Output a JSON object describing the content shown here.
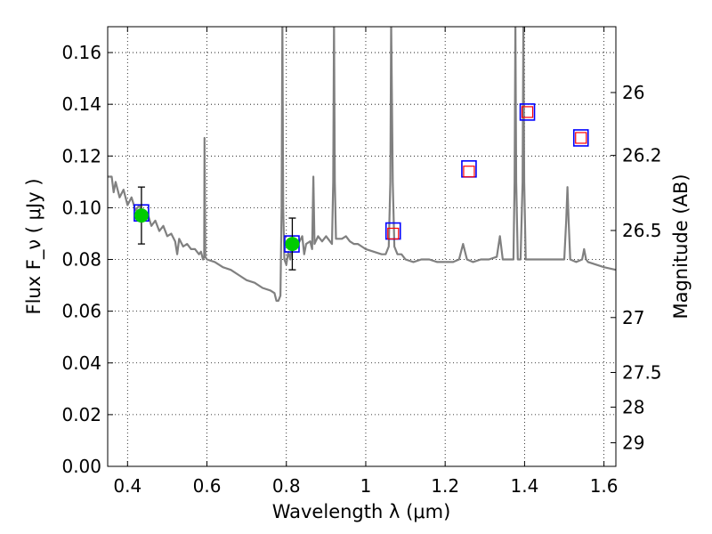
{
  "chart_data": {
    "type": "scatter",
    "title": "",
    "xlabel": "Wavelength  λ (μm)",
    "ylabel": "Flux  F_ν  ( μJy )",
    "ylabel_right": "Magnitude (AB)",
    "xlim": [
      0.35,
      1.63
    ],
    "ylim": [
      0.0,
      0.17
    ],
    "grid": true,
    "grid_style": "dotted",
    "xticks": [
      0.4,
      0.6,
      0.8,
      1.0,
      1.2,
      1.4,
      1.6
    ],
    "xtick_labels": [
      "0.4",
      "0.6",
      "0.8",
      "1",
      "1.2",
      "1.4",
      "1.6"
    ],
    "yticks": [
      0.0,
      0.02,
      0.04,
      0.06,
      0.08,
      0.1,
      0.12,
      0.14,
      0.16
    ],
    "ytick_labels": [
      "0.00",
      "0.02",
      "0.04",
      "0.06",
      "0.08",
      "0.10",
      "0.12",
      "0.14",
      "0.16"
    ],
    "right_ticks": [
      {
        "mag": 26.0,
        "label": "26"
      },
      {
        "mag": 26.2,
        "label": "26.2"
      },
      {
        "mag": 26.5,
        "label": "26.5"
      },
      {
        "mag": 27.0,
        "label": "27"
      },
      {
        "mag": 27.5,
        "label": "27.5"
      },
      {
        "mag": 28.0,
        "label": "28"
      },
      {
        "mag": 29.0,
        "label": "29"
      }
    ],
    "observed_points": [
      {
        "x": 0.435,
        "y": 0.097,
        "yerr": 0.011
      },
      {
        "x": 0.815,
        "y": 0.086,
        "yerr": 0.01
      }
    ],
    "model_photometry": [
      {
        "x": 0.435,
        "y": 0.098
      },
      {
        "x": 0.814,
        "y": 0.086
      },
      {
        "x": 1.069,
        "y": 0.091
      },
      {
        "x": 1.26,
        "y": 0.115
      },
      {
        "x": 1.407,
        "y": 0.137
      },
      {
        "x": 1.542,
        "y": 0.127
      }
    ],
    "upper_limits": [
      {
        "x": 1.069,
        "y": 0.09
      },
      {
        "x": 1.26,
        "y": 0.114
      },
      {
        "x": 1.407,
        "y": 0.137
      },
      {
        "x": 1.542,
        "y": 0.127
      }
    ],
    "spectrum": [
      [
        0.35,
        0.112
      ],
      [
        0.36,
        0.112
      ],
      [
        0.365,
        0.106
      ],
      [
        0.37,
        0.11
      ],
      [
        0.38,
        0.104
      ],
      [
        0.39,
        0.107
      ],
      [
        0.4,
        0.101
      ],
      [
        0.41,
        0.104
      ],
      [
        0.42,
        0.099
      ],
      [
        0.43,
        0.101
      ],
      [
        0.44,
        0.096
      ],
      [
        0.45,
        0.098
      ],
      [
        0.46,
        0.093
      ],
      [
        0.47,
        0.095
      ],
      [
        0.48,
        0.091
      ],
      [
        0.49,
        0.093
      ],
      [
        0.5,
        0.089
      ],
      [
        0.51,
        0.09
      ],
      [
        0.52,
        0.087
      ],
      [
        0.525,
        0.082
      ],
      [
        0.53,
        0.088
      ],
      [
        0.54,
        0.085
      ],
      [
        0.55,
        0.086
      ],
      [
        0.56,
        0.084
      ],
      [
        0.57,
        0.084
      ],
      [
        0.58,
        0.082
      ],
      [
        0.585,
        0.083
      ],
      [
        0.59,
        0.08
      ],
      [
        0.593,
        0.081
      ],
      [
        0.594,
        0.127
      ],
      [
        0.596,
        0.081
      ],
      [
        0.6,
        0.08
      ],
      [
        0.62,
        0.079
      ],
      [
        0.64,
        0.077
      ],
      [
        0.66,
        0.076
      ],
      [
        0.68,
        0.074
      ],
      [
        0.7,
        0.072
      ],
      [
        0.72,
        0.071
      ],
      [
        0.74,
        0.069
      ],
      [
        0.76,
        0.068
      ],
      [
        0.77,
        0.067
      ],
      [
        0.775,
        0.064
      ],
      [
        0.78,
        0.064
      ],
      [
        0.785,
        0.066
      ],
      [
        0.788,
        0.1
      ],
      [
        0.79,
        0.172
      ],
      [
        0.792,
        0.1
      ],
      [
        0.795,
        0.08
      ],
      [
        0.8,
        0.078
      ],
      [
        0.805,
        0.083
      ],
      [
        0.81,
        0.08
      ],
      [
        0.815,
        0.086
      ],
      [
        0.82,
        0.084
      ],
      [
        0.83,
        0.086
      ],
      [
        0.84,
        0.089
      ],
      [
        0.845,
        0.082
      ],
      [
        0.85,
        0.086
      ],
      [
        0.86,
        0.087
      ],
      [
        0.865,
        0.084
      ],
      [
        0.868,
        0.112
      ],
      [
        0.871,
        0.086
      ],
      [
        0.88,
        0.089
      ],
      [
        0.89,
        0.087
      ],
      [
        0.9,
        0.089
      ],
      [
        0.91,
        0.087
      ],
      [
        0.915,
        0.086
      ],
      [
        0.918,
        0.11
      ],
      [
        0.92,
        0.172
      ],
      [
        0.922,
        0.11
      ],
      [
        0.925,
        0.088
      ],
      [
        0.93,
        0.088
      ],
      [
        0.94,
        0.088
      ],
      [
        0.95,
        0.089
      ],
      [
        0.96,
        0.087
      ],
      [
        0.97,
        0.086
      ],
      [
        0.98,
        0.086
      ],
      [
        0.99,
        0.085
      ],
      [
        1.0,
        0.084
      ],
      [
        1.02,
        0.083
      ],
      [
        1.04,
        0.082
      ],
      [
        1.05,
        0.082
      ],
      [
        1.058,
        0.085
      ],
      [
        1.062,
        0.11
      ],
      [
        1.064,
        0.172
      ],
      [
        1.068,
        0.11
      ],
      [
        1.072,
        0.085
      ],
      [
        1.08,
        0.082
      ],
      [
        1.09,
        0.082
      ],
      [
        1.1,
        0.08
      ],
      [
        1.12,
        0.079
      ],
      [
        1.14,
        0.08
      ],
      [
        1.16,
        0.08
      ],
      [
        1.18,
        0.079
      ],
      [
        1.2,
        0.079
      ],
      [
        1.22,
        0.079
      ],
      [
        1.235,
        0.08
      ],
      [
        1.245,
        0.086
      ],
      [
        1.255,
        0.08
      ],
      [
        1.27,
        0.079
      ],
      [
        1.29,
        0.08
      ],
      [
        1.31,
        0.08
      ],
      [
        1.33,
        0.081
      ],
      [
        1.338,
        0.089
      ],
      [
        1.345,
        0.08
      ],
      [
        1.36,
        0.08
      ],
      [
        1.372,
        0.08
      ],
      [
        1.375,
        0.11
      ],
      [
        1.377,
        0.172
      ],
      [
        1.379,
        0.11
      ],
      [
        1.383,
        0.08
      ],
      [
        1.39,
        0.08
      ],
      [
        1.395,
        0.11
      ],
      [
        1.397,
        0.172
      ],
      [
        1.399,
        0.11
      ],
      [
        1.403,
        0.08
      ],
      [
        1.42,
        0.08
      ],
      [
        1.44,
        0.08
      ],
      [
        1.46,
        0.08
      ],
      [
        1.48,
        0.08
      ],
      [
        1.5,
        0.08
      ],
      [
        1.505,
        0.095
      ],
      [
        1.508,
        0.108
      ],
      [
        1.511,
        0.095
      ],
      [
        1.515,
        0.08
      ],
      [
        1.53,
        0.079
      ],
      [
        1.545,
        0.08
      ],
      [
        1.55,
        0.084
      ],
      [
        1.555,
        0.08
      ],
      [
        1.56,
        0.079
      ],
      [
        1.58,
        0.078
      ],
      [
        1.6,
        0.077
      ],
      [
        1.63,
        0.076
      ]
    ],
    "colors": {
      "spectrum": "#808080",
      "observed": "#00cc00",
      "error_bar": "#000000",
      "model_square": "#0000ff",
      "upper_limit_square": "#ff0000",
      "grid": "#000000"
    }
  }
}
